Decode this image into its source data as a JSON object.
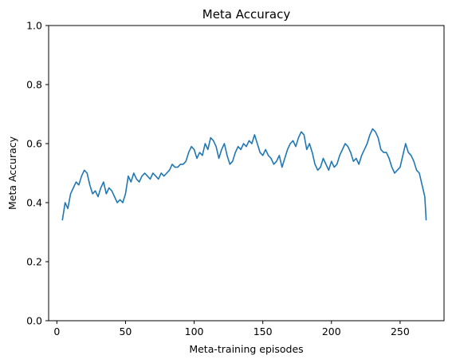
{
  "chart_data": {
    "type": "line",
    "title": "Meta Accuracy",
    "xlabel": "Meta-training episodes",
    "ylabel": "Meta Accuracy",
    "xlim": [
      -6,
      282
    ],
    "ylim": [
      0.0,
      1.0
    ],
    "xticks": [
      0,
      50,
      100,
      150,
      200,
      250
    ],
    "yticks": [
      0.0,
      0.2,
      0.4,
      0.6,
      0.8,
      1.0
    ],
    "xtick_labels": [
      "0",
      "50",
      "100",
      "150",
      "200",
      "250"
    ],
    "ytick_labels": [
      "0.0",
      "0.2",
      "0.4",
      "0.6",
      "0.8",
      "1.0"
    ],
    "grid": false,
    "legend": "none",
    "series": [
      {
        "color": "#1f77b4",
        "x": [
          4,
          6,
          8,
          10,
          12,
          14,
          16,
          18,
          20,
          22,
          24,
          26,
          28,
          30,
          32,
          34,
          36,
          38,
          40,
          42,
          44,
          46,
          48,
          50,
          52,
          54,
          56,
          58,
          60,
          62,
          64,
          66,
          68,
          70,
          72,
          74,
          76,
          78,
          80,
          82,
          84,
          86,
          88,
          90,
          92,
          94,
          96,
          98,
          100,
          102,
          104,
          106,
          108,
          110,
          112,
          114,
          116,
          118,
          120,
          122,
          124,
          126,
          128,
          130,
          132,
          134,
          136,
          138,
          140,
          142,
          144,
          146,
          148,
          150,
          152,
          154,
          156,
          158,
          160,
          162,
          164,
          166,
          168,
          170,
          172,
          174,
          176,
          178,
          180,
          182,
          184,
          186,
          188,
          190,
          192,
          194,
          196,
          198,
          200,
          202,
          204,
          206,
          208,
          210,
          212,
          214,
          216,
          218,
          220,
          222,
          224,
          226,
          228,
          230,
          232,
          234,
          236,
          238,
          240,
          242,
          244,
          246,
          248,
          250,
          252,
          254,
          256,
          258,
          260,
          262,
          264,
          266,
          268,
          269
        ],
        "y": [
          0.34,
          0.4,
          0.38,
          0.43,
          0.45,
          0.47,
          0.46,
          0.49,
          0.51,
          0.5,
          0.46,
          0.43,
          0.44,
          0.42,
          0.45,
          0.47,
          0.43,
          0.45,
          0.44,
          0.42,
          0.4,
          0.41,
          0.4,
          0.43,
          0.49,
          0.47,
          0.5,
          0.48,
          0.47,
          0.49,
          0.5,
          0.49,
          0.48,
          0.5,
          0.49,
          0.48,
          0.5,
          0.49,
          0.5,
          0.51,
          0.53,
          0.52,
          0.52,
          0.53,
          0.53,
          0.54,
          0.57,
          0.59,
          0.58,
          0.55,
          0.57,
          0.56,
          0.6,
          0.58,
          0.62,
          0.61,
          0.59,
          0.55,
          0.58,
          0.6,
          0.56,
          0.53,
          0.54,
          0.57,
          0.59,
          0.58,
          0.6,
          0.59,
          0.61,
          0.6,
          0.63,
          0.6,
          0.57,
          0.56,
          0.58,
          0.56,
          0.55,
          0.53,
          0.54,
          0.56,
          0.52,
          0.55,
          0.58,
          0.6,
          0.61,
          0.59,
          0.62,
          0.64,
          0.63,
          0.58,
          0.6,
          0.57,
          0.53,
          0.51,
          0.52,
          0.55,
          0.53,
          0.51,
          0.54,
          0.52,
          0.53,
          0.56,
          0.58,
          0.6,
          0.59,
          0.57,
          0.54,
          0.55,
          0.53,
          0.56,
          0.58,
          0.6,
          0.63,
          0.65,
          0.64,
          0.62,
          0.58,
          0.57,
          0.57,
          0.55,
          0.52,
          0.5,
          0.51,
          0.52,
          0.56,
          0.6,
          0.57,
          0.56,
          0.54,
          0.51,
          0.5,
          0.46,
          0.42,
          0.34
        ]
      }
    ]
  }
}
